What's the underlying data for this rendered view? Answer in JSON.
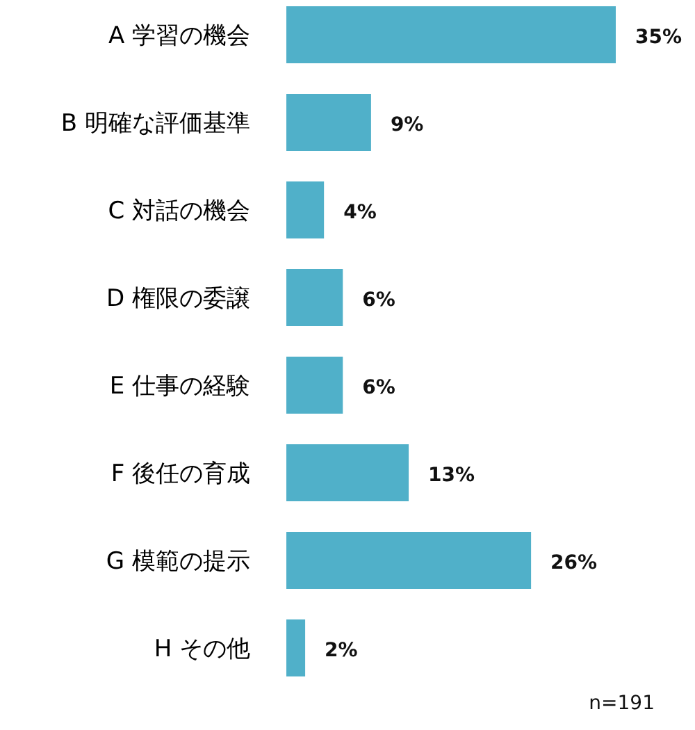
{
  "chart_data": {
    "type": "bar",
    "orientation": "horizontal",
    "categories": [
      "A 学習の機会",
      "B 明確な評価基準",
      "C 対話の機会",
      "D 権限の委譲",
      "E 仕事の経験",
      "F 後任の育成",
      "G 模範の提示",
      "H その他"
    ],
    "values": [
      35,
      9,
      4,
      6,
      6,
      13,
      26,
      2
    ],
    "value_labels": [
      "35%",
      "9%",
      "4%",
      "6%",
      "6%",
      "13%",
      "26%",
      "2%"
    ],
    "color": "#50b0c9",
    "annotations": [
      "n=191"
    ]
  }
}
